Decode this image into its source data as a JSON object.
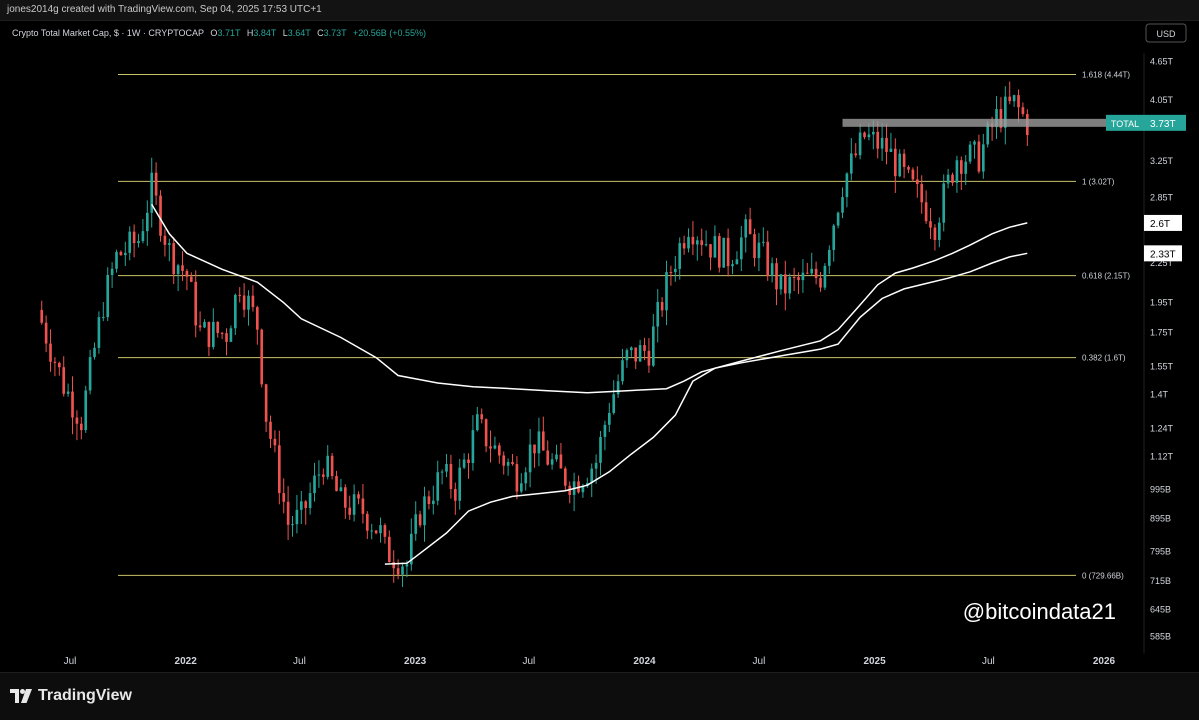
{
  "header": {
    "credit": "jones2014g created with TradingView.com, Sep 04, 2025 17:53 UTC+1"
  },
  "legend": {
    "symbol": "Crypto Total Market Cap, $ · 1W · CRYPTOCAP",
    "o_label": "O",
    "o_value": "3.71T",
    "h_label": "H",
    "h_value": "3.84T",
    "l_label": "L",
    "l_value": "3.64T",
    "c_label": "C",
    "c_value": "3.73T",
    "change": "+20.56B (+0.55%)"
  },
  "currency_button": "USD",
  "watermark": "@bitcoindata21",
  "footer": {
    "brand": "TradingView"
  },
  "colors": {
    "background": "#000000",
    "up": "#26a69a",
    "down": "#ef5350",
    "fib": "#c9c36a",
    "ma": "#ffffff",
    "price_tag": "#26a69a"
  },
  "chart_data": {
    "type": "candlestick",
    "title": "Crypto Total Market Cap, $ · 1W · CRYPTOCAP",
    "y_scale": "log",
    "ylim": [
      560000000000,
      5000000000000
    ],
    "y_ticks": [
      {
        "label": "4.65T",
        "value": 4650000000000.0
      },
      {
        "label": "4.05T",
        "value": 4050000000000.0
      },
      {
        "label": "3.25T",
        "value": 3250000000000.0
      },
      {
        "label": "2.85T",
        "value": 2850000000000.0
      },
      {
        "label": "2.25T",
        "value": 2250000000000.0
      },
      {
        "label": "1.95T",
        "value": 1950000000000.0
      },
      {
        "label": "1.75T",
        "value": 1750000000000.0
      },
      {
        "label": "1.55T",
        "value": 1550000000000.0
      },
      {
        "label": "1.4T",
        "value": 1400000000000.0
      },
      {
        "label": "1.24T",
        "value": 1240000000000.0
      },
      {
        "label": "1.12T",
        "value": 1120000000000.0
      },
      {
        "label": "995B",
        "value": 995000000000.0
      },
      {
        "label": "895B",
        "value": 895000000000.0
      },
      {
        "label": "795B",
        "value": 795000000000.0
      },
      {
        "label": "715B",
        "value": 715000000000.0
      },
      {
        "label": "645B",
        "value": 645000000000.0
      },
      {
        "label": "585B",
        "value": 585000000000.0
      }
    ],
    "x_ticks": [
      {
        "label": "Jul",
        "date": "2021-07-01",
        "bold": false
      },
      {
        "label": "2022",
        "date": "2022-01-01",
        "bold": true
      },
      {
        "label": "Jul",
        "date": "2022-07-01",
        "bold": false
      },
      {
        "label": "2023",
        "date": "2023-01-01",
        "bold": true
      },
      {
        "label": "Jul",
        "date": "2023-07-01",
        "bold": false
      },
      {
        "label": "2024",
        "date": "2024-01-01",
        "bold": true
      },
      {
        "label": "Jul",
        "date": "2024-07-01",
        "bold": false
      },
      {
        "label": "2025",
        "date": "2025-01-01",
        "bold": true
      },
      {
        "label": "Jul",
        "date": "2025-07-01",
        "bold": false
      },
      {
        "label": "2026",
        "date": "2026-01-01",
        "bold": true
      }
    ],
    "fib_levels": [
      {
        "label": "1.618 (4.44T)",
        "value": 4440000000000.0
      },
      {
        "label": "1 (3.02T)",
        "value": 3020000000000.0
      },
      {
        "label": "0.618 (2.15T)",
        "value": 2150000000000.0
      },
      {
        "label": "0.382 (1.6T)",
        "value": 1600000000000.0
      },
      {
        "label": "0 (729.66B)",
        "value": 729660000000.0
      }
    ],
    "horizontal_level": {
      "value": 3730000000000.0,
      "from": "2024-11-11",
      "to": "2025-09-01"
    },
    "price_tags": [
      {
        "name": "TOTAL",
        "label": "3.73T",
        "value": 3730000000000.0
      },
      {
        "name": "ma-1",
        "label": "2.6T",
        "value": 2600000000000.0
      },
      {
        "name": "ma-2",
        "label": "2.33T",
        "value": 2330000000000.0
      }
    ],
    "ma_lines": [
      {
        "points": [
          [
            "2021-11-08",
            2780000000000.0
          ],
          [
            "2021-12-06",
            2500000000000.0
          ],
          [
            "2022-01-03",
            2330000000000.0
          ],
          [
            "2022-02-28",
            2200000000000.0
          ],
          [
            "2022-04-25",
            2100000000000.0
          ],
          [
            "2022-06-06",
            1950000000000.0
          ],
          [
            "2022-07-04",
            1840000000000.0
          ],
          [
            "2022-09-05",
            1720000000000.0
          ],
          [
            "2022-10-31",
            1600000000000.0
          ],
          [
            "2022-12-05",
            1500000000000.0
          ],
          [
            "2023-02-06",
            1460000000000.0
          ],
          [
            "2023-04-03",
            1440000000000.0
          ],
          [
            "2023-06-05",
            1430000000000.0
          ],
          [
            "2023-07-31",
            1420000000000.0
          ],
          [
            "2023-10-02",
            1410000000000.0
          ],
          [
            "2023-12-04",
            1420000000000.0
          ],
          [
            "2024-02-05",
            1430000000000.0
          ],
          [
            "2024-03-04",
            1470000000000.0
          ],
          [
            "2024-04-01",
            1520000000000.0
          ],
          [
            "2024-06-03",
            1580000000000.0
          ],
          [
            "2024-08-05",
            1640000000000.0
          ],
          [
            "2024-10-07",
            1700000000000.0
          ],
          [
            "2024-11-04",
            1770000000000.0
          ],
          [
            "2024-12-02",
            1900000000000.0
          ],
          [
            "2025-01-06",
            2080000000000.0
          ],
          [
            "2025-02-03",
            2170000000000.0
          ],
          [
            "2025-03-03",
            2210000000000.0
          ],
          [
            "2025-04-07",
            2270000000000.0
          ],
          [
            "2025-05-05",
            2330000000000.0
          ],
          [
            "2025-06-02",
            2400000000000.0
          ],
          [
            "2025-07-07",
            2500000000000.0
          ],
          [
            "2025-08-04",
            2560000000000.0
          ],
          [
            "2025-09-01",
            2600000000000.0
          ]
        ]
      },
      {
        "points": [
          [
            "2022-11-14",
            760000000000.0
          ],
          [
            "2022-12-19",
            762000000000.0
          ],
          [
            "2023-01-09",
            790000000000.0
          ],
          [
            "2023-02-20",
            850000000000.0
          ],
          [
            "2023-03-27",
            920000000000.0
          ],
          [
            "2023-05-01",
            950000000000.0
          ],
          [
            "2023-06-05",
            970000000000.0
          ],
          [
            "2023-07-17",
            980000000000.0
          ],
          [
            "2023-08-28",
            990000000000.0
          ],
          [
            "2023-10-02",
            1010000000000.0
          ],
          [
            "2023-11-06",
            1060000000000.0
          ],
          [
            "2023-12-11",
            1130000000000.0
          ],
          [
            "2024-01-15",
            1200000000000.0
          ],
          [
            "2024-02-19",
            1300000000000.0
          ],
          [
            "2024-03-18",
            1470000000000.0
          ],
          [
            "2024-04-22",
            1540000000000.0
          ],
          [
            "2024-06-03",
            1570000000000.0
          ],
          [
            "2024-08-05",
            1610000000000.0
          ],
          [
            "2024-10-07",
            1650000000000.0
          ],
          [
            "2024-11-04",
            1680000000000.0
          ],
          [
            "2024-12-09",
            1850000000000.0
          ],
          [
            "2025-01-13",
            1980000000000.0
          ],
          [
            "2025-02-17",
            2050000000000.0
          ],
          [
            "2025-03-24",
            2090000000000.0
          ],
          [
            "2025-04-28",
            2130000000000.0
          ],
          [
            "2025-06-02",
            2180000000000.0
          ],
          [
            "2025-07-07",
            2250000000000.0
          ],
          [
            "2025-08-04",
            2300000000000.0
          ],
          [
            "2025-09-01",
            2330000000000.0
          ]
        ]
      }
    ],
    "anchors": [
      [
        "2021-05-10",
        1900000000000.0
      ],
      [
        "2021-06-21",
        1450000000000.0
      ],
      [
        "2021-07-19",
        1280000000000.0
      ],
      [
        "2021-08-23",
        1950000000000.0
      ],
      [
        "2021-09-13",
        2300000000000.0
      ],
      [
        "2021-10-18",
        2450000000000.0
      ],
      [
        "2021-11-08",
        2950000000000.0
      ],
      [
        "2021-12-06",
        2350000000000.0
      ],
      [
        "2022-01-03",
        2150000000000.0
      ],
      [
        "2022-01-24",
        1750000000000.0
      ],
      [
        "2022-03-07",
        1750000000000.0
      ],
      [
        "2022-03-28",
        2100000000000.0
      ],
      [
        "2022-04-25",
        1800000000000.0
      ],
      [
        "2022-05-09",
        1300000000000.0
      ],
      [
        "2022-06-13",
        880000000000.0
      ],
      [
        "2022-07-04",
        900000000000.0
      ],
      [
        "2022-08-08",
        1100000000000.0
      ],
      [
        "2022-09-05",
        950000000000.0
      ],
      [
        "2022-10-10",
        920000000000.0
      ],
      [
        "2022-11-07",
        850000000000.0
      ],
      [
        "2022-11-14",
        800000000000.0
      ],
      [
        "2022-12-19",
        760000000000.0
      ],
      [
        "2023-01-09",
        920000000000.0
      ],
      [
        "2023-02-13",
        1050000000000.0
      ],
      [
        "2023-03-06",
        1000000000000.0
      ],
      [
        "2023-04-10",
        1250000000000.0
      ],
      [
        "2023-05-08",
        1150000000000.0
      ],
      [
        "2023-06-12",
        1050000000000.0
      ],
      [
        "2023-07-10",
        1180000000000.0
      ],
      [
        "2023-08-21",
        1050000000000.0
      ],
      [
        "2023-09-11",
        1020000000000.0
      ],
      [
        "2023-10-16",
        1100000000000.0
      ],
      [
        "2023-11-06",
        1350000000000.0
      ],
      [
        "2023-12-04",
        1600000000000.0
      ],
      [
        "2024-01-08",
        1650000000000.0
      ],
      [
        "2024-02-12",
        2200000000000.0
      ],
      [
        "2024-03-11",
        2600000000000.0
      ],
      [
        "2024-04-15",
        2400000000000.0
      ],
      [
        "2024-05-13",
        2300000000000.0
      ],
      [
        "2024-06-10",
        2500000000000.0
      ],
      [
        "2024-07-08",
        2300000000000.0
      ],
      [
        "2024-08-05",
        2050000000000.0
      ],
      [
        "2024-09-02",
        2100000000000.0
      ],
      [
        "2024-10-07",
        2150000000000.0
      ],
      [
        "2024-11-11",
        3000000000000.0
      ],
      [
        "2024-12-16",
        3550000000000.0
      ],
      [
        "2025-01-20",
        3400000000000.0
      ],
      [
        "2025-02-24",
        3000000000000.0
      ],
      [
        "2025-03-24",
        2750000000000.0
      ],
      [
        "2025-04-07",
        2600000000000.0
      ],
      [
        "2025-05-12",
        3300000000000.0
      ],
      [
        "2025-06-16",
        3300000000000.0
      ],
      [
        "2025-07-14",
        3800000000000.0
      ],
      [
        "2025-08-11",
        4000000000000.0
      ],
      [
        "2025-09-01",
        3730000000000.0
      ]
    ]
  }
}
